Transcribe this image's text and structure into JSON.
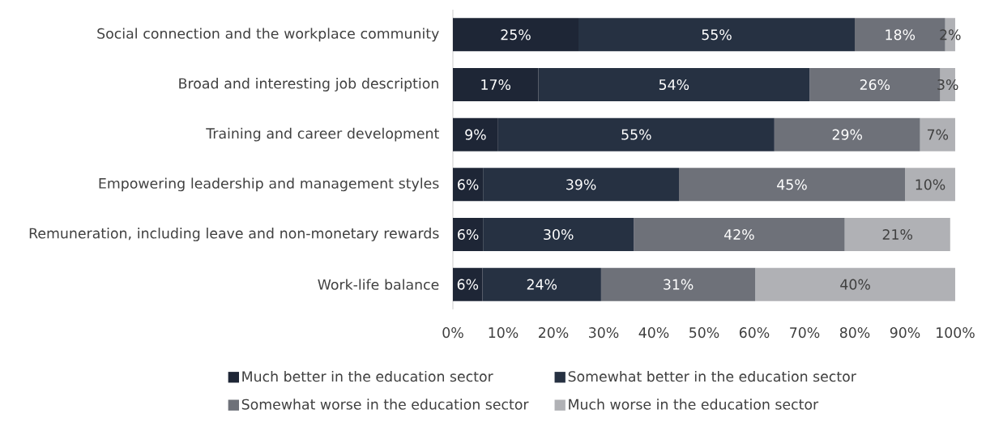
{
  "chart_data": {
    "type": "bar",
    "orientation": "horizontal",
    "stacked": true,
    "categories": [
      "Social connection and the workplace community",
      "Broad and interesting job description",
      "Training and career development",
      "Empowering leadership and management styles",
      "Remuneration, including leave and non-monetary rewards",
      "Work-life balance"
    ],
    "series": [
      {
        "name": "Much better in the education sector",
        "color": "#1e2636",
        "values": [
          25,
          17,
          9,
          6,
          6,
          5.9
        ],
        "value_labels": [
          "25%",
          "17%",
          "9%",
          "6%",
          "6%",
          "6%"
        ]
      },
      {
        "name": "Somewhat better in the education sector",
        "color": "#263142",
        "values": [
          55,
          54,
          55,
          39,
          30,
          23.6
        ],
        "value_labels": [
          "55%",
          "54%",
          "55%",
          "39%",
          "30%",
          "24%"
        ]
      },
      {
        "name": "Somewhat worse in the education sector",
        "color": "#6e7179",
        "values": [
          18,
          26,
          29,
          45,
          42,
          30.7
        ],
        "value_labels": [
          "18%",
          "26%",
          "29%",
          "45%",
          "42%",
          "31%"
        ]
      },
      {
        "name": "Much worse in the education sector",
        "color": "#b0b1b5",
        "values": [
          2,
          3,
          7,
          10,
          21,
          39.8
        ],
        "value_labels": [
          "2%",
          "3%",
          "7%",
          "10%",
          "21%",
          "40%"
        ]
      }
    ],
    "xlim": [
      0,
      100
    ],
    "xticks": [
      {
        "value": 0,
        "label": "0%"
      },
      {
        "value": 10,
        "label": "10%"
      },
      {
        "value": 20,
        "label": "20%"
      },
      {
        "value": 30,
        "label": "30%"
      },
      {
        "value": 40,
        "label": "40%"
      },
      {
        "value": 50,
        "label": "50%"
      },
      {
        "value": 60,
        "label": "60%"
      },
      {
        "value": 70,
        "label": "70%"
      },
      {
        "value": 80,
        "label": "80%"
      },
      {
        "value": 90,
        "label": "90%"
      },
      {
        "value": 100,
        "label": "100%"
      }
    ],
    "grid": false,
    "legend": "bottom"
  }
}
